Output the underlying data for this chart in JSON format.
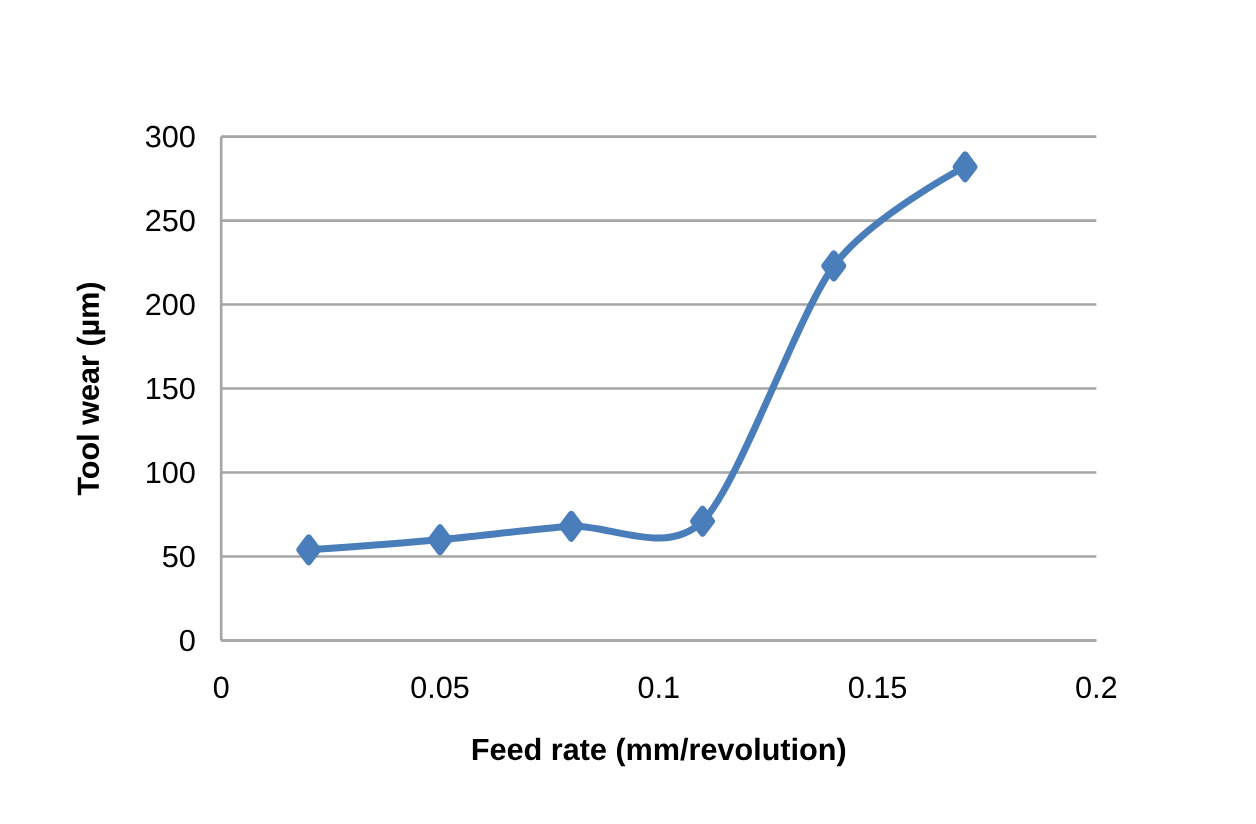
{
  "chart_data": {
    "type": "line",
    "xlabel": "Feed rate (mm/revolution)",
    "ylabel": "Tool wear (µm)",
    "x": [
      0.02,
      0.05,
      0.08,
      0.11,
      0.14,
      0.17
    ],
    "series": [
      {
        "color": "#4a7ebb",
        "values": [
          54,
          60,
          68,
          71,
          223,
          282
        ]
      }
    ],
    "xlim": [
      0,
      0.2
    ],
    "xticks": [
      0,
      0.05,
      0.1,
      0.15,
      0.2
    ],
    "ylim": [
      0,
      300
    ],
    "yticks": [
      0,
      50,
      100,
      150,
      200,
      250,
      300
    ],
    "grid": "y",
    "marker": "diamond",
    "line_style": "solid"
  }
}
